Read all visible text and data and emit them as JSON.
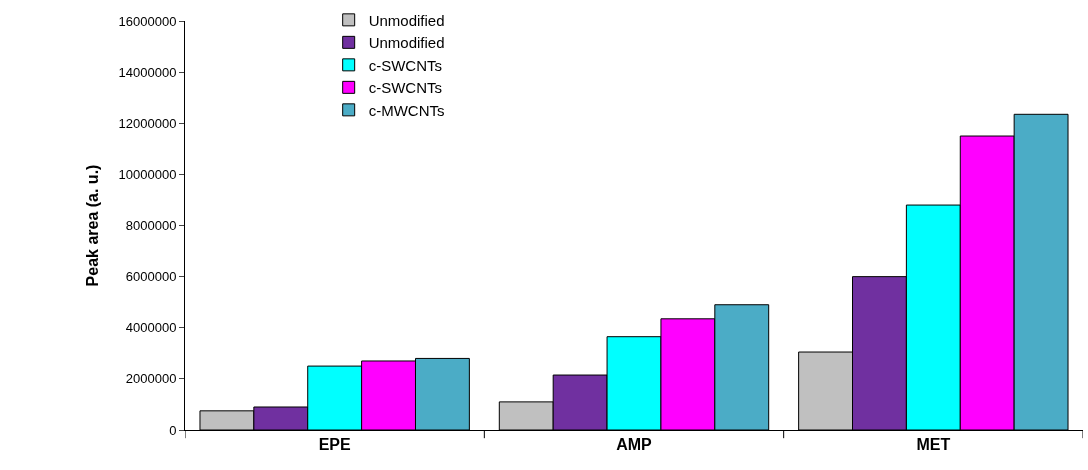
{
  "chart_data": {
    "type": "bar",
    "ylabel": "Peak area (a. u.)",
    "categories": [
      "EPE",
      "AMP",
      "MET"
    ],
    "series": [
      {
        "name": "Unmodified",
        "color": "#c0c0c0",
        "values": [
          750000,
          1100000,
          3050000
        ]
      },
      {
        "name": "Unmodified",
        "color": "#7030a0",
        "values": [
          900000,
          2150000,
          6000000
        ]
      },
      {
        "name": "c-SWCNTs",
        "color": "#00ffff",
        "values": [
          2500000,
          3650000,
          8800000
        ]
      },
      {
        "name": "c-SWCNTs",
        "color": "#ff00ff",
        "values": [
          2700000,
          4350000,
          11500000
        ]
      },
      {
        "name": "c-MWCNTs",
        "color": "#4bacc6",
        "values": [
          2800000,
          4900000,
          12350000
        ]
      }
    ],
    "ylim": [
      0,
      16000000
    ],
    "yticks": [
      0,
      2000000,
      4000000,
      6000000,
      8000000,
      10000000,
      12000000,
      14000000,
      16000000
    ],
    "legend": "top left"
  }
}
